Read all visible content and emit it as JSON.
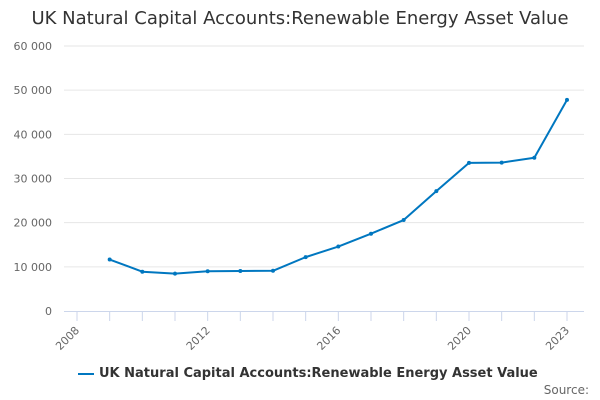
{
  "chart_data": {
    "type": "line",
    "title": "UK Natural Capital Accounts:Renewable Energy Asset Value",
    "xlabel": "",
    "ylabel": "",
    "x": [
      2009,
      2010,
      2011,
      2012,
      2013,
      2014,
      2015,
      2016,
      2017,
      2018,
      2019,
      2020,
      2021,
      2022,
      2023
    ],
    "series": [
      {
        "name": "UK Natural Capital Accounts:Renewable Energy Asset Value",
        "values": [
          11650,
          8900,
          8450,
          9000,
          9050,
          9100,
          12200,
          14600,
          17500,
          20600,
          27150,
          33550,
          33600,
          34700,
          47800
        ]
      }
    ],
    "xlim": [
      2008,
      2023
    ],
    "ylim": [
      0,
      60000
    ],
    "x_tick_labels": [
      "2008",
      "2012",
      "2016",
      "2020",
      "2023"
    ],
    "y_tick_labels": [
      "0",
      "10 000",
      "20 000",
      "30 000",
      "40 000",
      "50 000",
      "60 000"
    ],
    "grid": "horizontal",
    "legend": "bottom",
    "color": "#0077c0"
  },
  "source_label": "Source:"
}
